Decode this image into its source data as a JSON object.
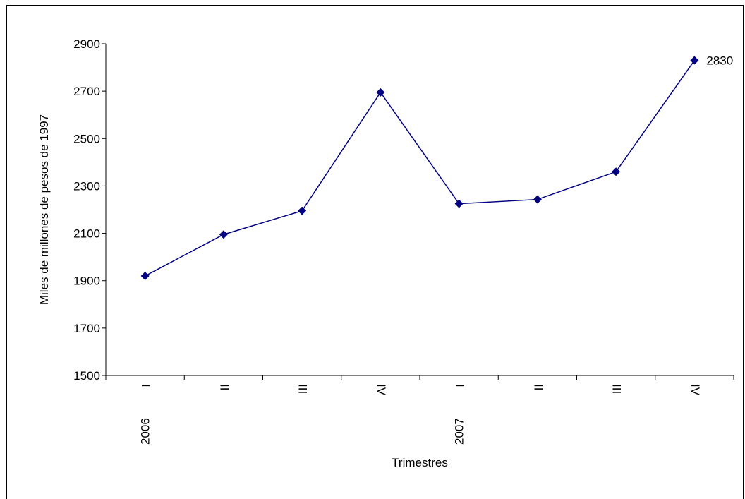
{
  "chart_data": {
    "type": "line",
    "title": "",
    "xlabel": "Trimestres",
    "ylabel": "Miles de millones de pesos de 1997",
    "ylim": [
      1500,
      2900
    ],
    "yticks": [
      1500,
      1700,
      1900,
      2100,
      2300,
      2500,
      2700,
      2900
    ],
    "categories": [
      "I",
      "II",
      "III",
      "IV",
      "I",
      "II",
      "III",
      "IV"
    ],
    "years": [
      {
        "label": "2006",
        "index": 0
      },
      {
        "label": "2007",
        "index": 4
      }
    ],
    "series": [
      {
        "name": "",
        "values": [
          1920,
          2095,
          2195,
          2695,
          2225,
          2243,
          2360,
          2830
        ],
        "color": "#000080"
      }
    ],
    "data_labels": [
      {
        "index": 7,
        "text": "2830"
      }
    ],
    "grid": false,
    "legend": "none"
  }
}
